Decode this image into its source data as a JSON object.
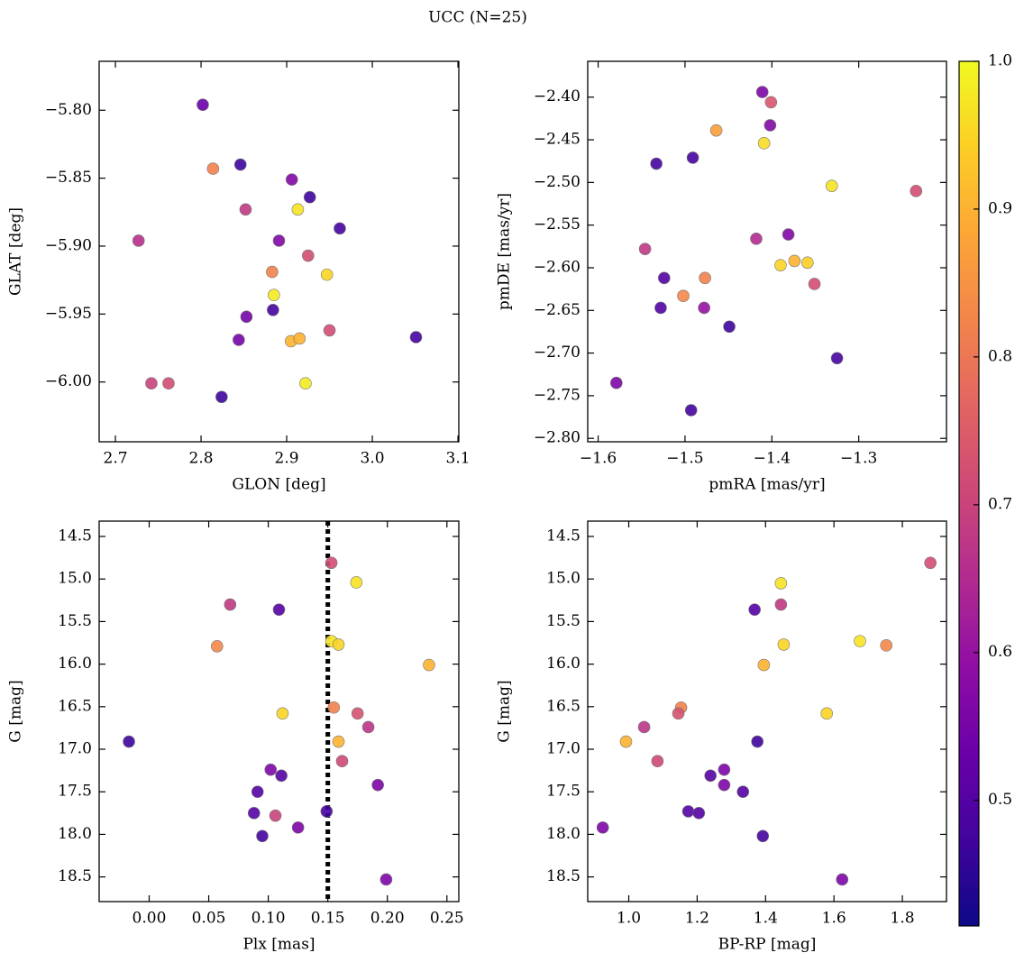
{
  "title": "UCC (N=25)",
  "colorbar": {
    "colormap": "plasma",
    "clim": [
      0.415,
      1.0
    ],
    "ticks": [
      0.5,
      0.6,
      0.7,
      0.8,
      0.9,
      {
        "value": 1,
        "label": "1.0"
      }
    ]
  },
  "chart_data": [
    {
      "type": "scatter",
      "xlabel": "GLON [deg]",
      "ylabel": "GLAT [deg]",
      "xlim": [
        2.681,
        3.101
      ],
      "ylim": [
        -6.044,
        -5.764
      ],
      "xticks": [
        2.7,
        2.8,
        2.9,
        {
          "value": 3,
          "label": "3.0"
        },
        3.1
      ],
      "yticks": [
        {
          "value": -5.8,
          "label": "−5.80"
        },
        {
          "value": -5.85,
          "label": "−5.85"
        },
        {
          "value": -5.9,
          "label": "−5.90"
        },
        {
          "value": -5.95,
          "label": "−5.95"
        },
        {
          "value": -6,
          "label": "−6.00"
        }
      ],
      "x": [
        2.802,
        2.814,
        2.846,
        2.906,
        2.927,
        2.913,
        2.852,
        2.727,
        2.891,
        2.962,
        2.925,
        2.883,
        2.947,
        2.885,
        2.884,
        2.853,
        2.844,
        2.905,
        2.915,
        2.95,
        3.051,
        2.742,
        2.762,
        2.922,
        2.824
      ],
      "y": [
        -5.796,
        -5.843,
        -5.84,
        -5.851,
        -5.864,
        -5.873,
        -5.873,
        -5.896,
        -5.896,
        -5.887,
        -5.907,
        -5.919,
        -5.921,
        -5.936,
        -5.947,
        -5.952,
        -5.969,
        -5.97,
        -5.968,
        -5.962,
        -5.967,
        -6.001,
        -6.001,
        -6.001,
        -6.011
      ],
      "c": [
        0.53,
        0.82,
        0.47,
        0.57,
        0.47,
        0.97,
        0.68,
        0.66,
        0.57,
        0.48,
        0.72,
        0.82,
        0.95,
        0.98,
        0.48,
        0.55,
        0.55,
        0.9,
        0.9,
        0.72,
        0.48,
        0.7,
        0.72,
        0.98,
        0.47
      ]
    },
    {
      "type": "scatter",
      "xlabel": "pmRA [mas/yr]",
      "ylabel": "pmDE [mas/yr]",
      "xlim": [
        -1.612,
        -1.199
      ],
      "ylim": [
        -2.804,
        -2.358
      ],
      "xticks": [
        {
          "value": -1.6,
          "label": "−1.6"
        },
        {
          "value": -1.5,
          "label": "−1.5"
        },
        {
          "value": -1.4,
          "label": "−1.4"
        },
        {
          "value": -1.3,
          "label": "−1.3"
        }
      ],
      "yticks": [
        {
          "value": -2.4,
          "label": "−2.40"
        },
        {
          "value": -2.45,
          "label": "−2.45"
        },
        {
          "value": -2.5,
          "label": "−2.50"
        },
        {
          "value": -2.55,
          "label": "−2.55"
        },
        {
          "value": -2.6,
          "label": "−2.60"
        },
        {
          "value": -2.65,
          "label": "−2.65"
        },
        {
          "value": -2.7,
          "label": "−2.70"
        },
        {
          "value": -2.75,
          "label": "−2.75"
        },
        {
          "value": -2.8,
          "label": "−2.80"
        }
      ],
      "x": [
        -1.411,
        -1.401,
        -1.402,
        -1.464,
        -1.409,
        -1.533,
        -1.491,
        -1.331,
        -1.234,
        -1.546,
        -1.418,
        -1.381,
        -1.39,
        -1.374,
        -1.359,
        -1.524,
        -1.477,
        -1.502,
        -1.351,
        -1.528,
        -1.478,
        -1.449,
        -1.325,
        -1.579,
        -1.493
      ],
      "y": [
        -2.394,
        -2.406,
        -2.433,
        -2.439,
        -2.454,
        -2.478,
        -2.471,
        -2.504,
        -2.51,
        -2.578,
        -2.566,
        -2.561,
        -2.597,
        -2.592,
        -2.594,
        -2.612,
        -2.612,
        -2.633,
        -2.619,
        -2.647,
        -2.647,
        -2.669,
        -2.706,
        -2.735,
        -2.767
      ],
      "c": [
        0.56,
        0.74,
        0.57,
        0.87,
        0.96,
        0.48,
        0.48,
        0.97,
        0.72,
        0.68,
        0.65,
        0.57,
        0.95,
        0.9,
        0.94,
        0.5,
        0.82,
        0.83,
        0.72,
        0.5,
        0.6,
        0.47,
        0.48,
        0.56,
        0.48
      ]
    },
    {
      "type": "scatter",
      "xlabel": "Plx [mas]",
      "ylabel": "G [mag]",
      "xlim": [
        -0.042,
        0.26
      ],
      "ylim": [
        18.79,
        14.32
      ],
      "vline": {
        "x": 0.15,
        "color": "#000000",
        "style": "dotted"
      },
      "xticks": [
        {
          "value": 0,
          "label": "0.00"
        },
        0.05,
        {
          "value": 0.1,
          "label": "0.10"
        },
        0.15,
        {
          "value": 0.2,
          "label": "0.20"
        },
        0.25
      ],
      "yticks": [
        14.5,
        {
          "value": 15,
          "label": "15.0"
        },
        15.5,
        {
          "value": 16,
          "label": "16.0"
        },
        16.5,
        {
          "value": 17,
          "label": "17.0"
        },
        17.5,
        {
          "value": 18,
          "label": "18.0"
        },
        18.5
      ],
      "x": [
        0.153,
        0.174,
        0.068,
        0.109,
        0.057,
        0.153,
        0.159,
        0.235,
        0.112,
        0.155,
        0.175,
        0.184,
        0.159,
        -0.017,
        0.162,
        0.102,
        0.111,
        0.192,
        0.091,
        0.088,
        0.106,
        0.149,
        0.125,
        0.095,
        0.199
      ],
      "y": [
        14.81,
        15.04,
        15.3,
        15.36,
        15.79,
        15.73,
        15.77,
        16.01,
        16.58,
        16.51,
        16.58,
        16.74,
        16.91,
        16.91,
        17.14,
        17.24,
        17.31,
        17.42,
        17.5,
        17.75,
        17.78,
        17.73,
        17.92,
        18.02,
        18.53
      ],
      "c": [
        0.72,
        0.97,
        0.68,
        0.5,
        0.83,
        0.97,
        0.95,
        0.9,
        0.95,
        0.82,
        0.73,
        0.67,
        0.9,
        0.47,
        0.71,
        0.56,
        0.5,
        0.56,
        0.5,
        0.5,
        0.7,
        0.48,
        0.56,
        0.48,
        0.56
      ]
    },
    {
      "type": "scatter",
      "xlabel": "BP-RP [mag]",
      "ylabel": "G [mag]",
      "xlim": [
        0.88,
        1.929
      ],
      "ylim": [
        18.79,
        14.32
      ],
      "xticks": [
        {
          "value": 1,
          "label": "1.0"
        },
        1.2,
        1.4,
        1.6,
        1.8
      ],
      "yticks": [
        14.5,
        {
          "value": 15,
          "label": "15.0"
        },
        15.5,
        {
          "value": 16,
          "label": "16.0"
        },
        16.5,
        {
          "value": 17,
          "label": "17.0"
        },
        17.5,
        {
          "value": 18,
          "label": "18.0"
        },
        18.5
      ],
      "x": [
        1.882,
        1.445,
        1.445,
        1.368,
        1.676,
        1.453,
        1.753,
        1.395,
        1.153,
        1.145,
        1.579,
        1.045,
        0.992,
        1.376,
        1.084,
        1.279,
        1.239,
        1.279,
        1.334,
        1.174,
        1.205,
        0.924,
        1.392,
        1.624
      ],
      "y": [
        14.81,
        15.05,
        15.3,
        15.36,
        15.73,
        15.77,
        15.78,
        16.01,
        16.51,
        16.58,
        16.58,
        16.74,
        16.91,
        16.91,
        17.14,
        17.24,
        17.31,
        17.42,
        17.5,
        17.73,
        17.75,
        17.92,
        18.02,
        18.53
      ],
      "c": [
        0.72,
        0.97,
        0.68,
        0.5,
        0.97,
        0.95,
        0.83,
        0.9,
        0.82,
        0.73,
        0.95,
        0.67,
        0.9,
        0.47,
        0.71,
        0.56,
        0.5,
        0.56,
        0.5,
        0.5,
        0.5,
        0.56,
        0.48,
        0.56
      ]
    }
  ]
}
